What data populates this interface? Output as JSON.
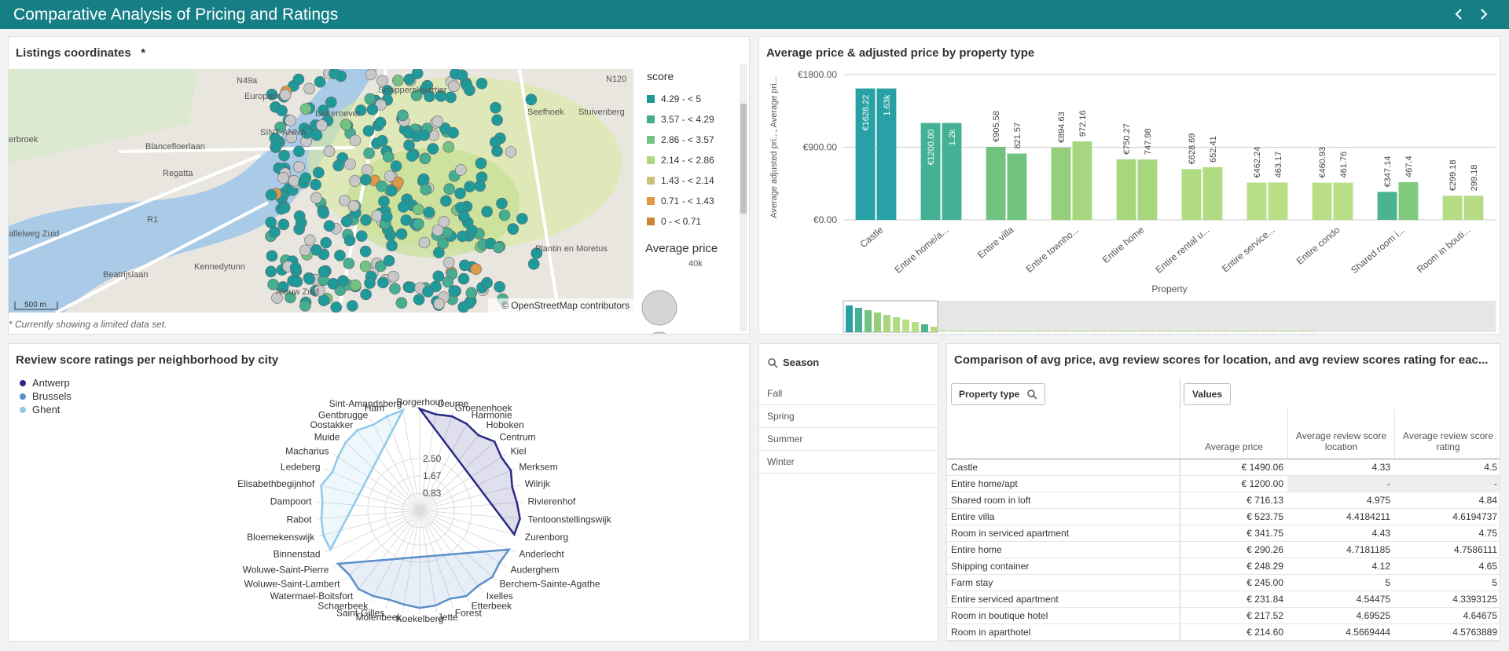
{
  "header": {
    "title": "Comparative Analysis of Pricing and Ratings"
  },
  "map": {
    "title": "Listings coordinates",
    "marker": "*",
    "legend_title": "score",
    "legend": [
      {
        "label": "4.29 - < 5",
        "color": "#1f9a9a"
      },
      {
        "label": "3.57 - < 4.29",
        "color": "#45ad90"
      },
      {
        "label": "2.86 - < 3.57",
        "color": "#74c181"
      },
      {
        "label": "2.14 - < 2.86",
        "color": "#aad883"
      },
      {
        "label": "1.43 - < 2.14",
        "color": "#c9c27f"
      },
      {
        "label": "0.71 - < 1.43",
        "color": "#dc9a48"
      },
      {
        "label": "0 - < 0.71",
        "color": "#c98630"
      }
    ],
    "size_title": "Average price",
    "size_label": "40k",
    "scale": "500 m",
    "attribution": "© OpenStreetMap contributors",
    "footnote": "* Currently showing a limited data set.",
    "places": [
      "N49a",
      "Europark",
      "Linkeroever",
      "SINT-ANNA",
      "erbroek",
      "Blancefloerlaan",
      "Regatta",
      "R1",
      "allelweg Zuid",
      "Beatrijslaan",
      "Kennedytunn",
      "Nieuw Zuid",
      "Seefhoek",
      "Stuivenberg",
      "N120",
      "Plantin en Moretus",
      "Schipperskwartier"
    ]
  },
  "chart_data": [
    {
      "type": "bar",
      "title": "Average price & adjusted price by property type",
      "y_label": "Average adjusted pri..., Average pri...",
      "x_label": "Property",
      "categories": [
        "Castle",
        "Entire home/a...",
        "Entire villa",
        "Entire townho...",
        "Entire home",
        "Entire rental u...",
        "Entire service...",
        "Entire condo",
        "Shared room i...",
        "Room in bouti..."
      ],
      "series": [
        {
          "colors": [
            "#27a1a5",
            "#44b195",
            "#72c380",
            "#94d07b",
            "#a6d77f",
            "#b0db83",
            "#b8de86",
            "#b8de86",
            "#4bb48e",
            "#b5dc85"
          ],
          "values": [
            1628.22,
            1200.0,
            905.58,
            894.63,
            750.27,
            628.69,
            462.24,
            460.93,
            347.14,
            299.18
          ],
          "value_labels": [
            "€1628.22",
            "€1200.00",
            "€905.58",
            "€894.63",
            "€750.27",
            "€628.69",
            "€462.24",
            "€460.93",
            "€347.14",
            "€299.18"
          ]
        },
        {
          "colors": [
            "#27a1a5",
            "#44b195",
            "#72c380",
            "#a6d77f",
            "#a6d77f",
            "#b0db83",
            "#b8de86",
            "#b8de86",
            "#7fca7e",
            "#b5dc85"
          ],
          "values": [
            1628.22,
            1200.0,
            821.57,
            972.16,
            747.98,
            652.41,
            463.17,
            461.76,
            467.4,
            299.18
          ],
          "value_labels": [
            "1.63k",
            "1.2k",
            "821.57",
            "972.16",
            "747.98",
            "652.41",
            "463.17",
            "461.76",
            "467.4",
            "299.18"
          ]
        }
      ],
      "ylim": [
        0,
        1800
      ],
      "yticks": [
        {
          "value": 0,
          "label": "€0.00"
        },
        {
          "value": 900,
          "label": "€900.00"
        },
        {
          "value": 1800,
          "label": "€1800.00"
        }
      ],
      "grid": true
    },
    {
      "type": "radar",
      "title": "Review score ratings per neighborhood by city",
      "categories": [
        "Borgerhout",
        "Deurne",
        "Groenenhoek",
        "Harmonie",
        "Hoboken",
        "Centrum",
        "Kiel",
        "Merksem",
        "Wilrijk",
        "Rivierenhof",
        "Tentoonstellingswijk",
        "Zurenborg",
        "Anderlecht",
        "Auderghem",
        "Berchem-Sainte-Agathe",
        "Ixelles",
        "Etterbeek",
        "Forest",
        "Jette",
        "Koekelberg",
        "Molenbeek",
        "Saint-Gilles",
        "Schaerbeek",
        "Watermael-Boitsfort",
        "Woluwe-Saint-Lambert",
        "Woluwe-Saint-Pierre",
        "Binnenstad",
        "Bloemekenswijk",
        "Rabot",
        "Dampoort",
        "Elisabethbegijnhof",
        "Ledeberg",
        "Macharius",
        "Muide",
        "Oostakker",
        "Gentbrugge",
        "Ham",
        "Sint-Amandsberg"
      ],
      "series": [
        {
          "name": "Antwerp",
          "color": "#2a2a86",
          "values": [
            4.9,
            4.7,
            4.8,
            4.75,
            4.6,
            4.9,
            4.7,
            4.8,
            4.6,
            4.7,
            4.85,
            4.7,
            null,
            null,
            null,
            null,
            null,
            null,
            null,
            null,
            null,
            null,
            null,
            null,
            null,
            null,
            null,
            null,
            null,
            null,
            null,
            null,
            null,
            null,
            null,
            null,
            null,
            null
          ]
        },
        {
          "name": "Brussels",
          "color": "#5b8fc9",
          "values": [
            null,
            null,
            null,
            null,
            null,
            null,
            null,
            null,
            null,
            null,
            null,
            null,
            4.7,
            4.6,
            4.75,
            4.6,
            4.7,
            4.5,
            4.65,
            4.7,
            4.6,
            4.55,
            4.7,
            4.8,
            4.6,
            4.7,
            null,
            null,
            null,
            null,
            null,
            null,
            null,
            null,
            null,
            null,
            null,
            null
          ]
        },
        {
          "name": "Ghent",
          "color": "#8fc8ea",
          "values": [
            null,
            null,
            null,
            null,
            null,
            null,
            null,
            null,
            null,
            null,
            null,
            null,
            null,
            null,
            null,
            null,
            null,
            null,
            null,
            null,
            null,
            null,
            null,
            null,
            null,
            null,
            4.7,
            4.8,
            4.75,
            4.7,
            4.9,
            4.6,
            4.7,
            4.85,
            4.9,
            4.7,
            4.8,
            4.9
          ]
        }
      ],
      "rlim": [
        0,
        5
      ],
      "rticks": [
        0.83,
        1.67,
        {
          "value": 2.5,
          "label": "2.50"
        }
      ]
    }
  ],
  "season": {
    "title": "Season",
    "items": [
      "Fall",
      "Spring",
      "Summer",
      "Winter"
    ]
  },
  "table": {
    "title": "Comparison of avg price, avg review scores for location, and avg review scores rating for eac...",
    "dimension_button": "Property type",
    "values_button": "Values",
    "columns": [
      "Average price",
      "Average review score location",
      "Average review score rating"
    ],
    "rows": [
      [
        "Castle",
        "€ 1490.06",
        "4.33",
        "4.5"
      ],
      [
        "Entire home/apt",
        "€ 1200.00",
        "-",
        "-"
      ],
      [
        "Shared room in loft",
        "€ 716.13",
        "4.975",
        "4.84"
      ],
      [
        "Entire villa",
        "€ 523.75",
        "4.4184211",
        "4.6194737"
      ],
      [
        "Room in serviced apartment",
        "€ 341.75",
        "4.43",
        "4.75"
      ],
      [
        "Entire home",
        "€ 290.26",
        "4.7181185",
        "4.7586111"
      ],
      [
        "Shipping container",
        "€ 248.29",
        "4.12",
        "4.65"
      ],
      [
        "Farm stay",
        "€ 245.00",
        "5",
        "5"
      ],
      [
        "Entire serviced apartment",
        "€ 231.84",
        "4.54475",
        "4.3393125"
      ],
      [
        "Room in boutique hotel",
        "€ 217.52",
        "4.69525",
        "4.64675"
      ],
      [
        "Room in aparthotel",
        "€ 214.60",
        "4.5669444",
        "4.5763889"
      ]
    ]
  }
}
